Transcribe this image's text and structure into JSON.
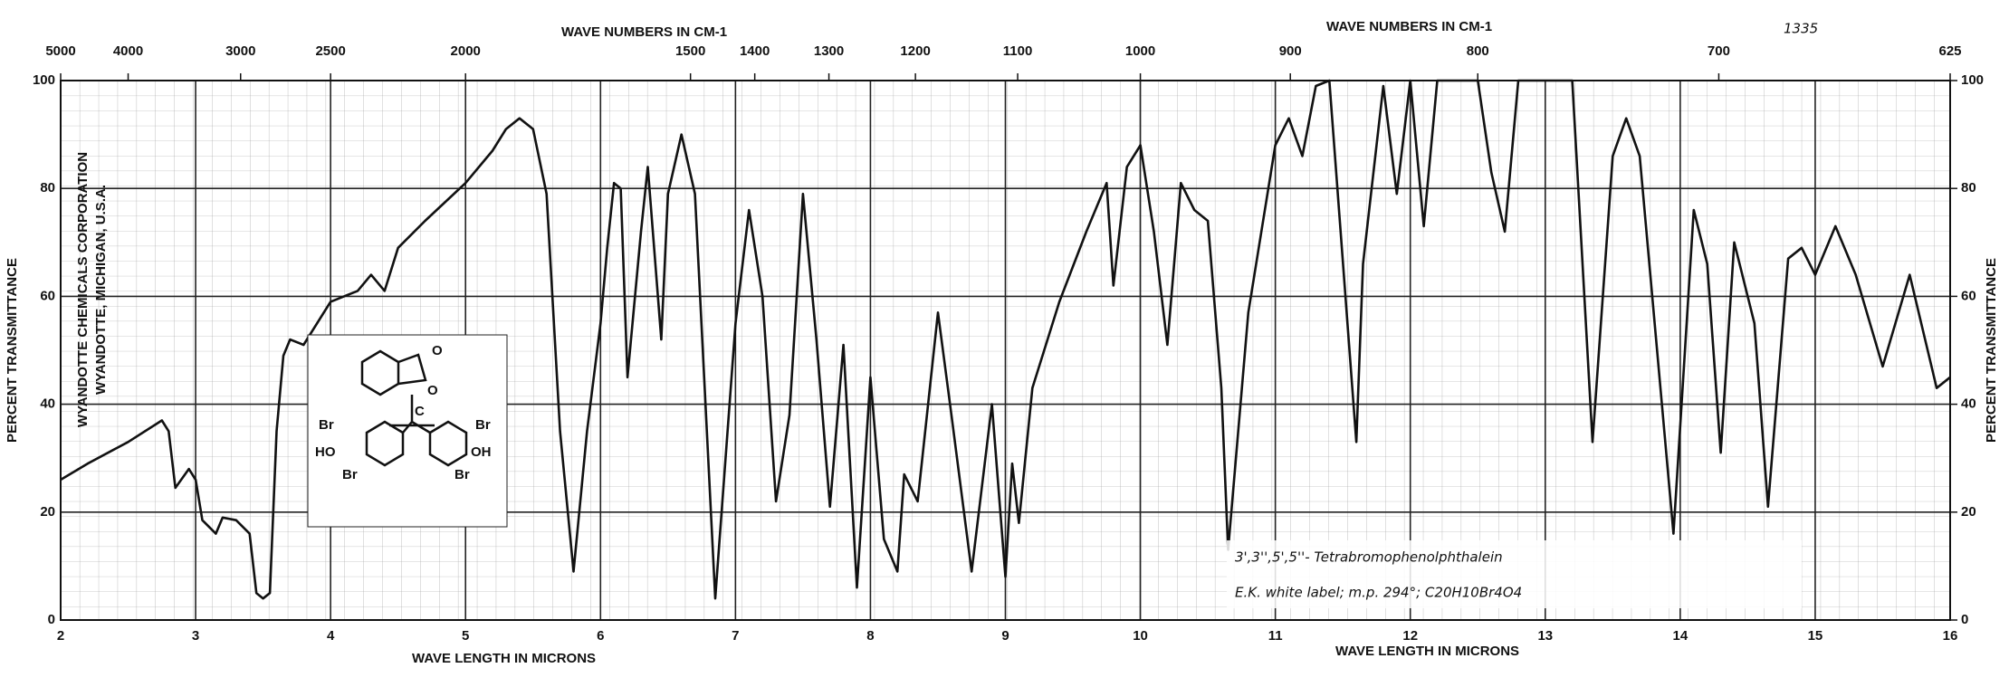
{
  "chart_data": {
    "type": "line",
    "x_labels": [
      "WAVE LENGTH IN MICRONS",
      "WAVE LENGTH IN MICRONS"
    ],
    "x2_labels": [
      "WAVE NUMBERS IN CM-1",
      "WAVE NUMBERS IN CM-1"
    ],
    "y_label": "PERCENT TRANSMITTANCE",
    "y2_label": "PERCENT TRANSMITTANCE",
    "spectrum_number": "1335",
    "maker": [
      "WYANDOTTE CHEMICALS CORPORATION",
      "WYANDOTTE, MICHIGAN, U.S.A."
    ],
    "annotations": [
      "3',3'',5',5''- Tetrabromophenolphthalein",
      "E.K. white label; m.p. 294°; C20H10Br4O4"
    ],
    "structure_labels": [
      "O",
      "O",
      "C",
      "Br",
      "HO",
      "Br",
      "Br",
      "OH",
      "Br"
    ],
    "color": "#111111",
    "grid": true,
    "xlim": [
      2,
      16
    ],
    "xticks": [
      2,
      3,
      4,
      5,
      6,
      7,
      8,
      9,
      10,
      11,
      12,
      13,
      14,
      15,
      16
    ],
    "x2scale": "reciprocal",
    "x2ticks": [
      5000,
      4000,
      3000,
      2500,
      2000,
      1500,
      1400,
      1300,
      1200,
      1100,
      1000,
      900,
      800,
      700,
      625
    ],
    "ylim": [
      0,
      100
    ],
    "yticks": [
      0,
      20,
      40,
      60,
      80,
      100
    ],
    "y2lim": [
      0,
      100
    ],
    "y2ticks": [
      0,
      20,
      40,
      60,
      80,
      100
    ],
    "x": [
      2,
      2.2,
      2.5,
      2.75,
      2.8,
      2.85,
      2.95,
      3.0,
      3.05,
      3.15,
      3.2,
      3.3,
      3.4,
      3.45,
      3.5,
      3.55,
      3.6,
      3.65,
      3.7,
      3.8,
      4.0,
      4.2,
      4.3,
      4.4,
      4.5,
      4.7,
      5.0,
      5.2,
      5.3,
      5.4,
      5.5,
      5.6,
      5.7,
      5.8,
      5.9,
      6.0,
      6.05,
      6.1,
      6.15,
      6.2,
      6.3,
      6.35,
      6.45,
      6.5,
      6.6,
      6.7,
      6.85,
      7.0,
      7.1,
      7.2,
      7.3,
      7.4,
      7.5,
      7.6,
      7.7,
      7.8,
      7.9,
      8.0,
      8.1,
      8.2,
      8.25,
      8.35,
      8.5,
      8.6,
      8.75,
      8.9,
      9.0,
      9.05,
      9.1,
      9.2,
      9.4,
      9.6,
      9.75,
      9.8,
      9.9,
      10.0,
      10.1,
      10.2,
      10.3,
      10.4,
      10.5,
      10.6,
      10.65,
      10.8,
      11.0,
      11.1,
      11.2,
      11.3,
      11.4,
      11.6,
      11.65,
      11.8,
      11.9,
      12.0,
      12.1,
      12.2,
      12.5,
      12.6,
      12.7,
      12.8,
      13.2,
      13.35,
      13.5,
      13.6,
      13.7,
      13.95,
      14.1,
      14.2,
      14.3,
      14.4,
      14.55,
      14.65,
      14.8,
      14.9,
      15.0,
      15.15,
      15.3,
      15.5,
      15.7,
      15.9,
      16
    ],
    "values": [
      26,
      29,
      33,
      37,
      35,
      24.5,
      28,
      26,
      18.5,
      16,
      19,
      18.5,
      16,
      5,
      4,
      5,
      35,
      49,
      52,
      51,
      59,
      61,
      64,
      61,
      69,
      74,
      81,
      87,
      91,
      93,
      91,
      79,
      35,
      9,
      35,
      55,
      69,
      81,
      80,
      45,
      72,
      84,
      52,
      79,
      90,
      79,
      4,
      55,
      76,
      60,
      22,
      38,
      79,
      52,
      21,
      51,
      6,
      45,
      15,
      9,
      27,
      22,
      57,
      38,
      9,
      40,
      8,
      29,
      18,
      43,
      59,
      72,
      81,
      62,
      84,
      88,
      72,
      51,
      81,
      76,
      74,
      43,
      13,
      57,
      88,
      93,
      86,
      99,
      100,
      33,
      66,
      99,
      79,
      100,
      73,
      100,
      100,
      83,
      72,
      100,
      100,
      33,
      86,
      93,
      86,
      16,
      76,
      66,
      31,
      70,
      55,
      21,
      67,
      69,
      64,
      73,
      64,
      47,
      64,
      43,
      45
    ]
  }
}
